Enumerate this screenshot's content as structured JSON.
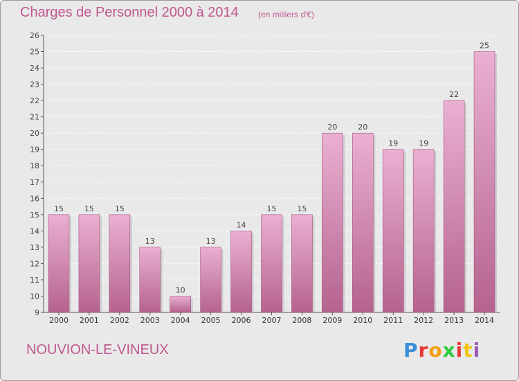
{
  "header": {
    "title": "Charges de Personnel 2000 à 2014",
    "subtitle": "(en milliers d'€)"
  },
  "footer": {
    "commune": "NOUVION-LE-VINEUX",
    "logo_text": "Proxiti",
    "logo_colors": [
      "#3a8fd6",
      "#e53935",
      "#f39c12",
      "#2ecc40",
      "#e53935",
      "#f1c40f",
      "#9b59b6"
    ]
  },
  "colors": {
    "accent": "#c0578e",
    "bar_top": "#eab0d2",
    "bar_bottom": "#b5638e",
    "background": "#e9e9e9"
  },
  "chart_data": {
    "type": "bar",
    "categories": [
      "2000",
      "2001",
      "2002",
      "2003",
      "2004",
      "2005",
      "2006",
      "2007",
      "2008",
      "2009",
      "2010",
      "2011",
      "2012",
      "2013",
      "2014"
    ],
    "values": [
      15,
      15,
      15,
      13,
      10,
      13,
      14,
      15,
      15,
      20,
      20,
      19,
      19,
      22,
      25
    ],
    "ylim": [
      9,
      26
    ],
    "yticks": [
      9,
      10,
      11,
      12,
      13,
      14,
      15,
      16,
      17,
      18,
      19,
      20,
      21,
      22,
      23,
      24,
      25,
      26
    ],
    "title": "Charges de Personnel 2000 à 2014",
    "xlabel": "",
    "ylabel": "",
    "grid": true,
    "data_labels": true
  }
}
